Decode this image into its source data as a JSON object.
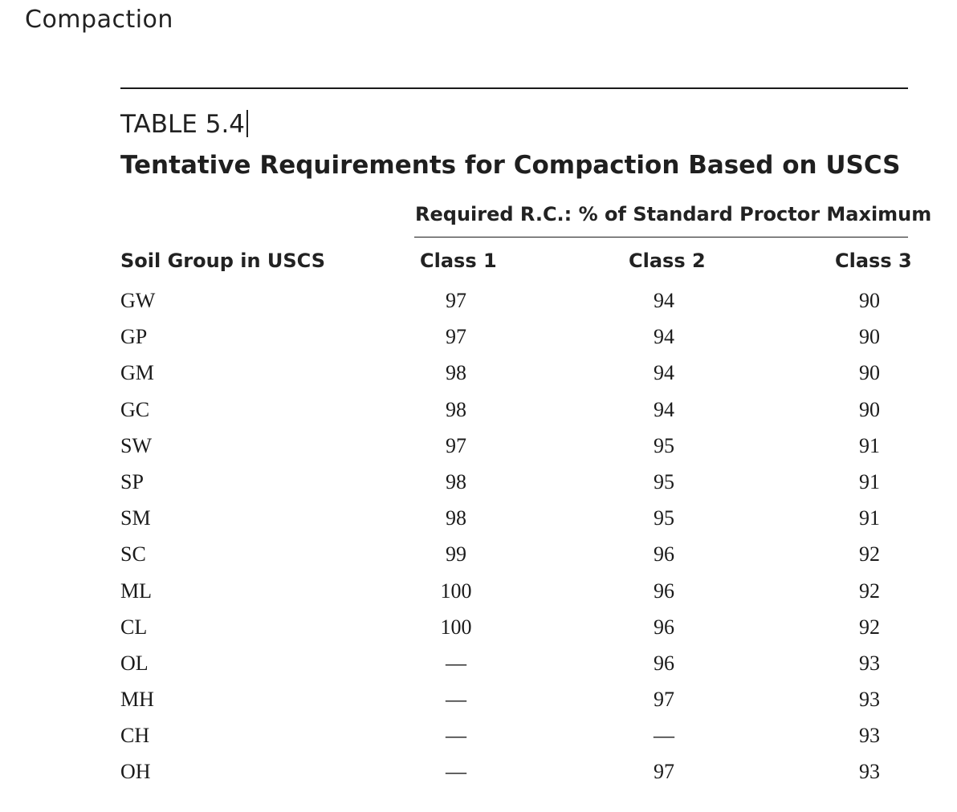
{
  "running_head": "Compaction",
  "table": {
    "number": "TABLE 5.4",
    "title": "Tentative Requirements for Compaction Based on USCS",
    "span_header": "Required R.C.: % of Standard Proctor Maximum",
    "columns": [
      "Soil Group in USCS",
      "Class 1",
      "Class 2",
      "Class 3"
    ],
    "rows": [
      {
        "soil": "GW",
        "class1": "97",
        "class2": "94",
        "class3": "90"
      },
      {
        "soil": "GP",
        "class1": "97",
        "class2": "94",
        "class3": "90"
      },
      {
        "soil": "GM",
        "class1": "98",
        "class2": "94",
        "class3": "90"
      },
      {
        "soil": "GC",
        "class1": "98",
        "class2": "94",
        "class3": "90"
      },
      {
        "soil": "SW",
        "class1": "97",
        "class2": "95",
        "class3": "91"
      },
      {
        "soil": "SP",
        "class1": "98",
        "class2": "95",
        "class3": "91"
      },
      {
        "soil": "SM",
        "class1": "98",
        "class2": "95",
        "class3": "91"
      },
      {
        "soil": "SC",
        "class1": "99",
        "class2": "96",
        "class3": "92"
      },
      {
        "soil": "ML",
        "class1": "100",
        "class2": "96",
        "class3": "92"
      },
      {
        "soil": "CL",
        "class1": "100",
        "class2": "96",
        "class3": "92"
      },
      {
        "soil": "OL",
        "class1": "—",
        "class2": "96",
        "class3": "93"
      },
      {
        "soil": "MH",
        "class1": "—",
        "class2": "97",
        "class3": "93"
      },
      {
        "soil": "CH",
        "class1": "—",
        "class2": "—",
        "class3": "93"
      },
      {
        "soil": "OH",
        "class1": "—",
        "class2": "97",
        "class3": "93"
      }
    ]
  }
}
